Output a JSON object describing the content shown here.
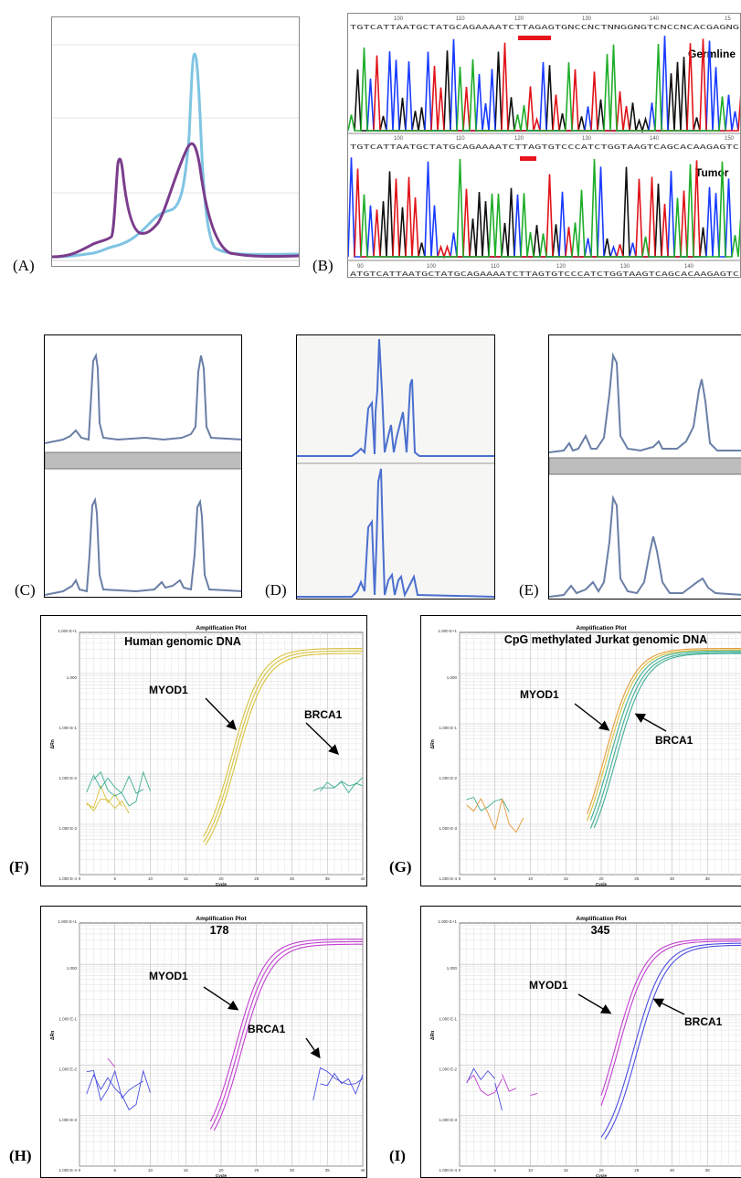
{
  "panel_labels": {
    "a": "(A)",
    "b": "(B)",
    "c": "(C)",
    "d": "(D)",
    "e": "(E)",
    "f": "(F)",
    "g": "(G)",
    "h": "(H)",
    "i": "(I)"
  },
  "panel_b": {
    "germline_label": "Germline",
    "tumor_label": "Tumor",
    "germline_sequence": "TGTCATTAATGCTATGCAGAAAATCTTAGAGTGNCCNCTNNGGNGTCNCCNCACGAGNG",
    "tumor_sequence": "TGTCATTAATGCTATGCAGAAAATCTTAGTGTCCCATCTGGTAAGTCAGCACAAGAGTC",
    "bottom_sequence": "ATGTCATTAATGCTATGCAGAAAATCTTAGTGTCCCATCTGGTAAGTCAGCACAAGAGTC",
    "germline_ticks": [
      "100",
      "110",
      "120",
      "130",
      "140",
      "15"
    ],
    "tumor_ticks": [
      "100",
      "110",
      "120",
      "130",
      "140",
      "150"
    ],
    "bottom_ticks": [
      "90",
      "100",
      "110",
      "120",
      "130",
      "140"
    ]
  },
  "amp_common": {
    "title": "Amplification Plot",
    "x_label": "Cycle",
    "y_label": "ΔRn",
    "y_ticks": [
      "1.000 E+1",
      "1.000",
      "1.000 E-1",
      "1.000 E-2",
      "1.000 E-3",
      "1.000 E-4"
    ],
    "x_ticks": [
      "0",
      "5",
      "10",
      "15",
      "20",
      "25",
      "30",
      "35",
      "40"
    ]
  },
  "amp_panels": {
    "f": {
      "heading": "Human genomic DNA",
      "myod": "MYOD1",
      "brca": "BRCA1"
    },
    "g": {
      "heading": "CpG methylated Jurkat genomic DNA",
      "myod": "MYOD1",
      "brca": "BRCA1"
    },
    "h": {
      "heading": "178",
      "myod": "MYOD1",
      "brca": "BRCA1"
    },
    "i": {
      "heading": "345",
      "myod": "MYOD1",
      "brca": "BRCA1"
    }
  },
  "colors": {
    "purple": "#7a3d8c",
    "light_blue": "#7fc4e3",
    "trace_blue": "#6a7fa6",
    "yellow": "#d8c23a",
    "teal": "#3fae93",
    "orange": "#e89a3a",
    "magenta": "#c23fd0",
    "blue": "#4a4ee0",
    "red_bar": "#e8141c"
  }
}
